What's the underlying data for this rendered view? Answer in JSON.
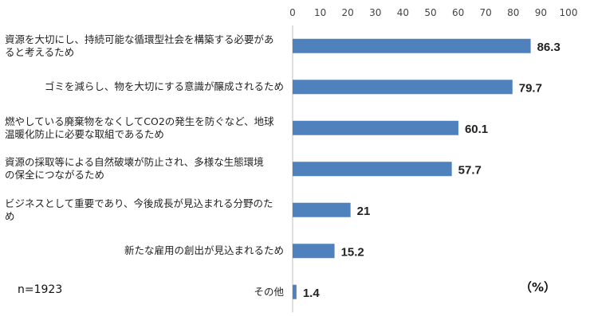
{
  "chart_data": {
    "type": "bar",
    "orientation": "horizontal",
    "categories": [
      [
        "資源を大切にし、持続可能な循環型社会を構築する必要があ",
        "ると考えるため"
      ],
      [
        "ゴミを減らし、物を大切にする意識が醸成されるため"
      ],
      [
        "燃やしている廃棄物をなくしてCO2の発生を防ぐなど、地球",
        "温暖化防止に必要な取組であるため"
      ],
      [
        "資源の採取等による自然破壊が防止され、多様な生態環境",
        "の保全につながるため"
      ],
      [
        "ビジネスとして重要であり、今後成長が見込まれる分野のた",
        "め"
      ],
      [
        "新たな雇用の創出が見込まれるため"
      ],
      [
        "その他"
      ]
    ],
    "values": [
      86.3,
      79.7,
      60.1,
      57.7,
      21,
      15.2,
      1.4
    ],
    "value_labels": [
      "86.3",
      "79.7",
      "60.1",
      "57.7",
      "21",
      "15.2",
      "1.4"
    ],
    "xlim": [
      0,
      100
    ],
    "ticks": [
      "0",
      "10",
      "20",
      "30",
      "40",
      "50",
      "60",
      "70",
      "80",
      "90",
      "100"
    ],
    "bar_color": "#4f81bd",
    "grid": false,
    "axis_position": "top"
  },
  "annotations": {
    "sample_size": "n=1923",
    "unit": "（%）"
  }
}
